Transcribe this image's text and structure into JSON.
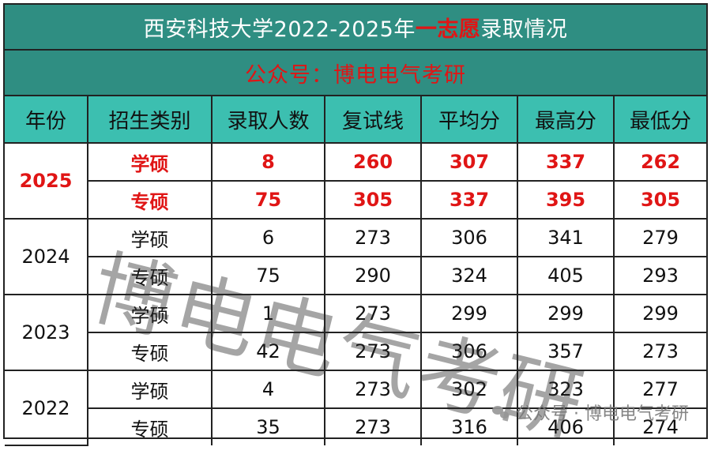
{
  "title": {
    "prefix": "西安科技大学2022-2025年",
    "highlight": "一志愿",
    "suffix": "录取情况"
  },
  "subtitle": "公众号：博电电气考研",
  "table": {
    "headers": [
      "年份",
      "招生类别",
      "录取人数",
      "复试线",
      "平均分",
      "最高分",
      "最低分"
    ],
    "groups": [
      {
        "year": "2025",
        "highlight": true,
        "rows": [
          {
            "category": "学硕",
            "admitted": "8",
            "retest_line": "260",
            "avg": "307",
            "max": "337",
            "min": "262"
          },
          {
            "category": "专硕",
            "admitted": "75",
            "retest_line": "305",
            "avg": "337",
            "max": "395",
            "min": "305"
          }
        ]
      },
      {
        "year": "2024",
        "highlight": false,
        "rows": [
          {
            "category": "学硕",
            "admitted": "6",
            "retest_line": "273",
            "avg": "306",
            "max": "341",
            "min": "279"
          },
          {
            "category": "专硕",
            "admitted": "75",
            "retest_line": "290",
            "avg": "324",
            "max": "405",
            "min": "293"
          }
        ]
      },
      {
        "year": "2023",
        "highlight": false,
        "rows": [
          {
            "category": "学硕",
            "admitted": "1",
            "retest_line": "273",
            "avg": "299",
            "max": "299",
            "min": "299"
          },
          {
            "category": "专硕",
            "admitted": "42",
            "retest_line": "273",
            "avg": "306",
            "max": "357",
            "min": "273"
          }
        ]
      },
      {
        "year": "2022",
        "highlight": false,
        "rows": [
          {
            "category": "学硕",
            "admitted": "4",
            "retest_line": "273",
            "avg": "302",
            "max": "323",
            "min": "277"
          },
          {
            "category": "专硕",
            "admitted": "35",
            "retest_line": "273",
            "avg": "316",
            "max": "406",
            "min": "274"
          }
        ]
      }
    ]
  },
  "watermark": "博电电气考研",
  "brand": {
    "icon": "wechat-icon",
    "text": "公众号 · 博电电气考研"
  },
  "colors": {
    "title_bg": "#2f8e82",
    "header_bg": "#3cbfb0",
    "highlight": "#e01515"
  }
}
